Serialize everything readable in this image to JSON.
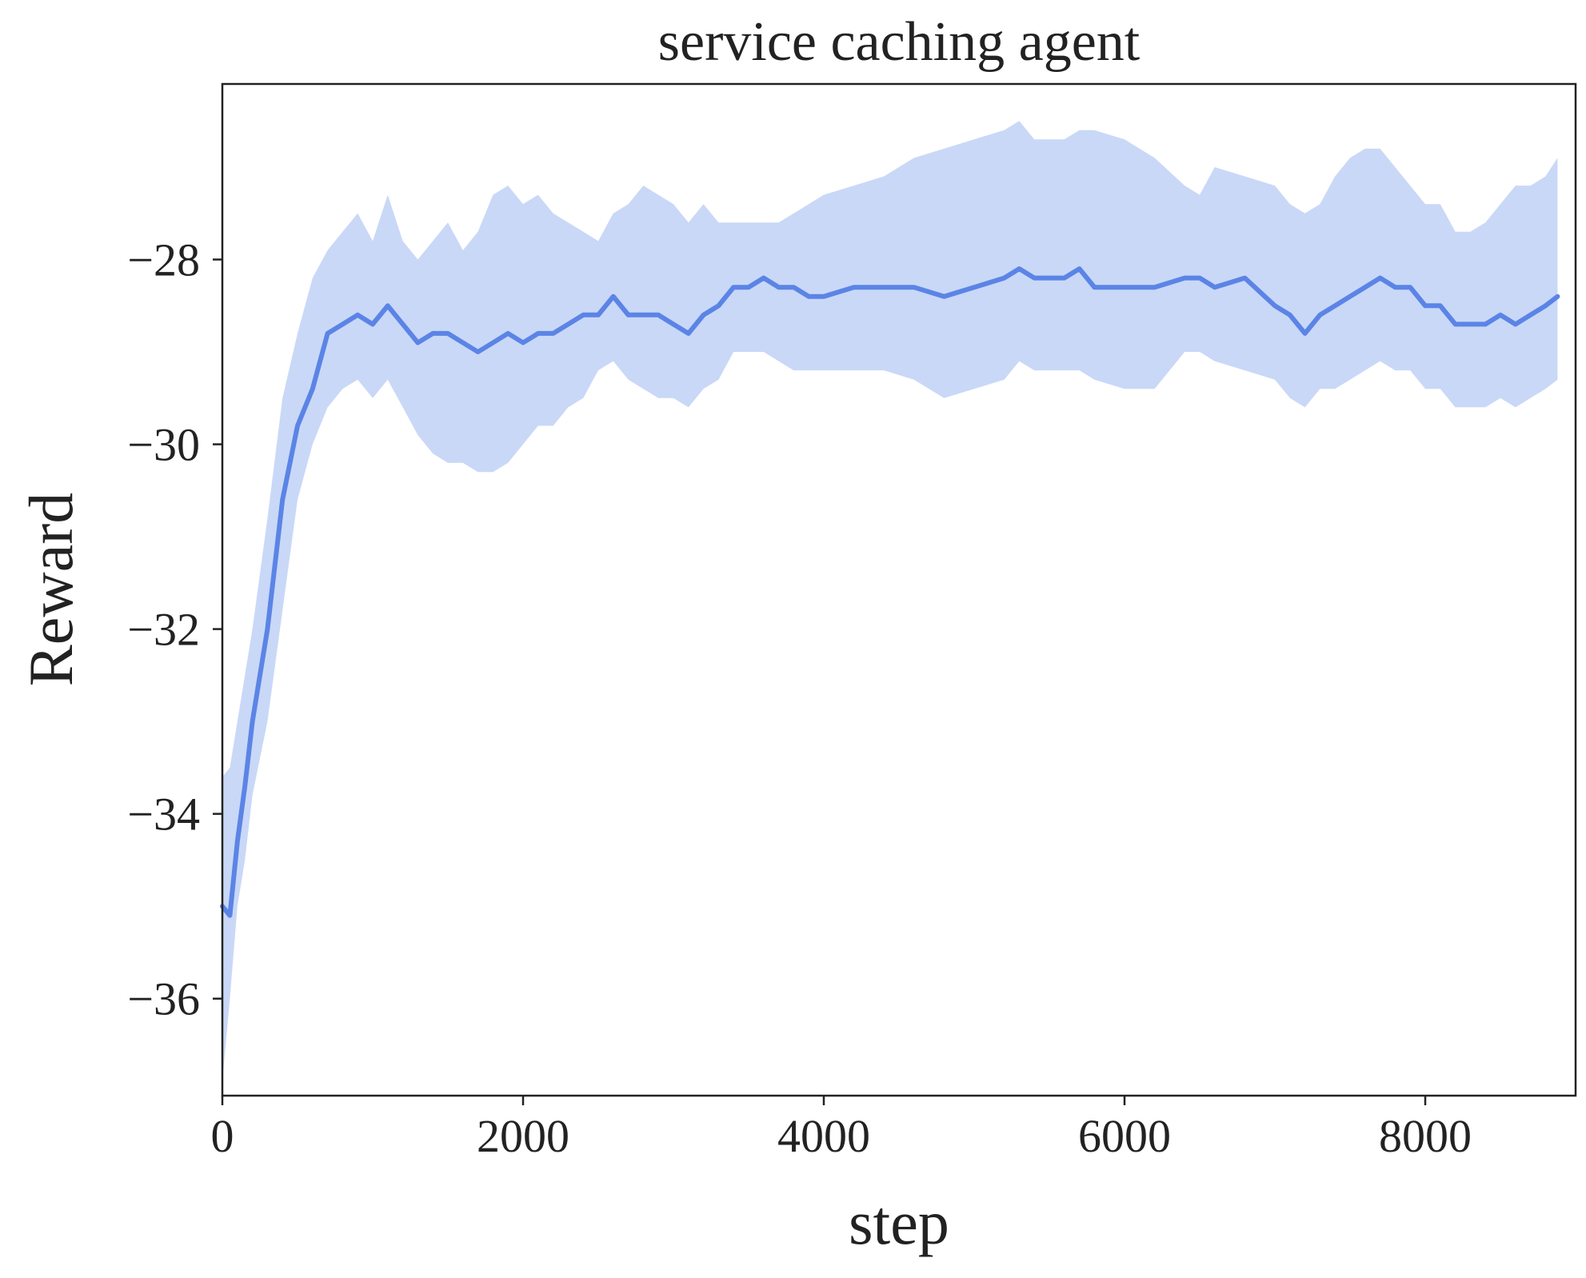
{
  "chart_data": {
    "type": "line",
    "title": "service caching agent",
    "xlabel": "step",
    "ylabel": "Reward",
    "xlim": [
      0,
      9000
    ],
    "ylim": [
      -37.05,
      -26.1
    ],
    "x_ticks": [
      0,
      2000,
      4000,
      6000,
      8000
    ],
    "x_tick_labels": [
      "0",
      "2000",
      "4000",
      "6000",
      "8000"
    ],
    "y_ticks": [
      -36,
      -34,
      -32,
      -30,
      -28
    ],
    "y_tick_labels": [
      "−36",
      "−34",
      "−32",
      "−30",
      "−28"
    ],
    "grid": false,
    "colors": {
      "line": "#5b84e6",
      "band": "#c9d8f7",
      "axes": "#222222"
    },
    "series": [
      {
        "x": [
          0,
          50,
          100,
          150,
          200,
          300,
          400,
          500,
          600,
          700,
          800,
          900,
          1000,
          1100,
          1200,
          1300,
          1400,
          1500,
          1600,
          1700,
          1800,
          1900,
          2000,
          2100,
          2200,
          2300,
          2400,
          2500,
          2600,
          2700,
          2800,
          2900,
          3000,
          3100,
          3200,
          3300,
          3400,
          3500,
          3600,
          3700,
          3800,
          3900,
          4000,
          4200,
          4400,
          4600,
          4800,
          5000,
          5200,
          5300,
          5400,
          5600,
          5700,
          5800,
          6000,
          6200,
          6400,
          6500,
          6600,
          6800,
          7000,
          7100,
          7200,
          7300,
          7400,
          7500,
          7600,
          7700,
          7800,
          7900,
          8000,
          8100,
          8200,
          8300,
          8400,
          8500,
          8600,
          8700,
          8800,
          8880
        ],
        "y": [
          -35.0,
          -35.1,
          -34.3,
          -33.7,
          -33.0,
          -32.0,
          -30.6,
          -29.8,
          -29.4,
          -28.8,
          -28.7,
          -28.6,
          -28.7,
          -28.5,
          -28.7,
          -28.9,
          -28.8,
          -28.8,
          -28.9,
          -29.0,
          -28.9,
          -28.8,
          -28.9,
          -28.8,
          -28.8,
          -28.7,
          -28.6,
          -28.6,
          -28.4,
          -28.6,
          -28.6,
          -28.6,
          -28.7,
          -28.8,
          -28.6,
          -28.5,
          -28.3,
          -28.3,
          -28.2,
          -28.3,
          -28.3,
          -28.4,
          -28.4,
          -28.3,
          -28.3,
          -28.3,
          -28.4,
          -28.3,
          -28.2,
          -28.1,
          -28.2,
          -28.2,
          -28.1,
          -28.3,
          -28.3,
          -28.3,
          -28.2,
          -28.2,
          -28.3,
          -28.2,
          -28.5,
          -28.6,
          -28.8,
          -28.6,
          -28.5,
          -28.4,
          -28.3,
          -28.2,
          -28.3,
          -28.3,
          -28.5,
          -28.5,
          -28.7,
          -28.7,
          -28.7,
          -28.6,
          -28.7,
          -28.6,
          -28.5,
          -28.4
        ],
        "lower": [
          -36.9,
          -36.0,
          -35.0,
          -34.5,
          -33.8,
          -33.0,
          -31.8,
          -30.6,
          -30.0,
          -29.6,
          -29.4,
          -29.3,
          -29.5,
          -29.3,
          -29.6,
          -29.9,
          -30.1,
          -30.2,
          -30.2,
          -30.3,
          -30.3,
          -30.2,
          -30.0,
          -29.8,
          -29.8,
          -29.6,
          -29.5,
          -29.2,
          -29.1,
          -29.3,
          -29.4,
          -29.5,
          -29.5,
          -29.6,
          -29.4,
          -29.3,
          -29.0,
          -29.0,
          -29.0,
          -29.1,
          -29.2,
          -29.2,
          -29.2,
          -29.2,
          -29.2,
          -29.3,
          -29.5,
          -29.4,
          -29.3,
          -29.1,
          -29.2,
          -29.2,
          -29.2,
          -29.3,
          -29.4,
          -29.4,
          -29.0,
          -29.0,
          -29.1,
          -29.2,
          -29.3,
          -29.5,
          -29.6,
          -29.4,
          -29.4,
          -29.3,
          -29.2,
          -29.1,
          -29.2,
          -29.2,
          -29.4,
          -29.4,
          -29.6,
          -29.6,
          -29.6,
          -29.5,
          -29.6,
          -29.5,
          -29.4,
          -29.3
        ],
        "upper": [
          -33.6,
          -33.5,
          -33.0,
          -32.5,
          -32.0,
          -30.8,
          -29.5,
          -28.8,
          -28.2,
          -27.9,
          -27.7,
          -27.5,
          -27.8,
          -27.3,
          -27.8,
          -28.0,
          -27.8,
          -27.6,
          -27.9,
          -27.7,
          -27.3,
          -27.2,
          -27.4,
          -27.3,
          -27.5,
          -27.6,
          -27.7,
          -27.8,
          -27.5,
          -27.4,
          -27.2,
          -27.3,
          -27.4,
          -27.6,
          -27.4,
          -27.6,
          -27.6,
          -27.6,
          -27.6,
          -27.6,
          -27.5,
          -27.4,
          -27.3,
          -27.2,
          -27.1,
          -26.9,
          -26.8,
          -26.7,
          -26.6,
          -26.5,
          -26.7,
          -26.7,
          -26.6,
          -26.6,
          -26.7,
          -26.9,
          -27.2,
          -27.3,
          -27.0,
          -27.1,
          -27.2,
          -27.4,
          -27.5,
          -27.4,
          -27.1,
          -26.9,
          -26.8,
          -26.8,
          -27.0,
          -27.2,
          -27.4,
          -27.4,
          -27.7,
          -27.7,
          -27.6,
          -27.4,
          -27.2,
          -27.2,
          -27.1,
          -26.9
        ]
      }
    ]
  }
}
